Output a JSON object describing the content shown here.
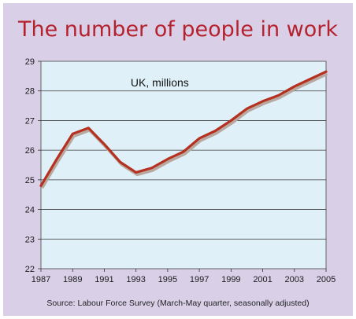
{
  "chart_data": {
    "type": "line",
    "title": "The number of people in work",
    "annotation": "UK, millions",
    "source": "Source: Labour Force Survey (March-May quarter, seasonally adjusted)",
    "xlabel": "",
    "ylabel": "",
    "xlim": [
      1987,
      2005
    ],
    "ylim": [
      22,
      29
    ],
    "x_ticks": [
      1987,
      1989,
      1991,
      1993,
      1995,
      1997,
      1999,
      2001,
      2003,
      2005
    ],
    "y_ticks": [
      22,
      23,
      24,
      25,
      26,
      27,
      28,
      29
    ],
    "grid": "horizontal",
    "colors": {
      "line": "#b5301f",
      "line_shadow": "#b8a8a0",
      "plot_background": "#dff0f8",
      "frame_background": "#d9d0e8",
      "title": "#b5222e"
    },
    "series": [
      {
        "x": [
          1987,
          1988,
          1989,
          1990,
          1991,
          1992,
          1993,
          1994,
          1995,
          1996,
          1997,
          1998,
          1999,
          2000,
          2001,
          2002,
          2003,
          2004,
          2005
        ],
        "values": [
          24.8,
          25.7,
          26.55,
          26.75,
          26.2,
          25.6,
          25.25,
          25.4,
          25.7,
          25.95,
          26.4,
          26.65,
          27.0,
          27.4,
          27.65,
          27.85,
          28.15,
          28.4,
          28.65
        ]
      }
    ]
  }
}
